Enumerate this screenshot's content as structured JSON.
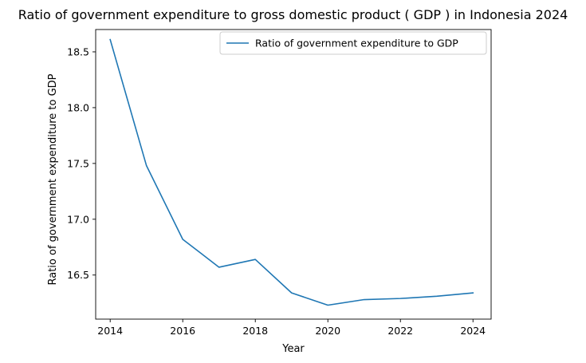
{
  "colors": {
    "series_line": "#1f77b4",
    "axes": "#000000",
    "legend_border": "#cccccc",
    "background": "#ffffff"
  },
  "chart_data": {
    "type": "line",
    "title": "Ratio of government expenditure to gross domestic product ( GDP ) in Indonesia 2024",
    "xlabel": "Year",
    "ylabel": "Ratio of government expenditure to GDP",
    "xlim": [
      2013.6,
      2024.5
    ],
    "ylim": [
      16.105,
      18.7
    ],
    "x_ticks": [
      2014,
      2016,
      2018,
      2020,
      2022,
      2024
    ],
    "x_tick_labels": [
      "2014",
      "2016",
      "2018",
      "2020",
      "2022",
      "2024"
    ],
    "y_ticks": [
      16.5,
      17.0,
      17.5,
      18.0,
      18.5
    ],
    "y_tick_labels": [
      "16.5",
      "17.0",
      "17.5",
      "18.0",
      "18.5"
    ],
    "grid": false,
    "legend_position": "top-right",
    "x": [
      2014,
      2015,
      2016,
      2017,
      2018,
      2019,
      2020,
      2021,
      2022,
      2023,
      2024
    ],
    "series": [
      {
        "name": "Ratio of government expenditure to GDP",
        "values": [
          18.61,
          17.48,
          16.82,
          16.57,
          16.64,
          16.34,
          16.23,
          16.28,
          16.29,
          16.31,
          16.34
        ]
      }
    ]
  }
}
